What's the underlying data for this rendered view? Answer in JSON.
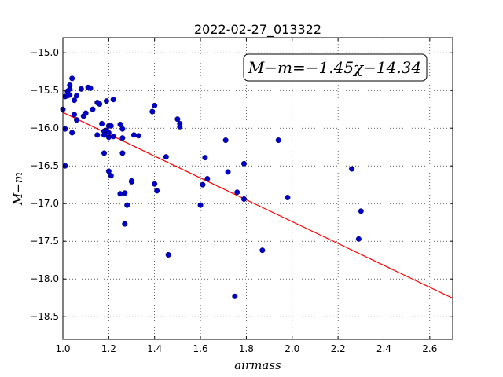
{
  "chart_data": {
    "type": "scatter",
    "title": "2022-02-27_013322",
    "xlabel": "airmass",
    "ylabel": "M−m",
    "xlim": [
      1.0,
      2.7
    ],
    "ylim": [
      -18.8,
      -14.8
    ],
    "ylim_note": "y axis inverted: -15.0 at top, -18.5 at bottom",
    "x_ticks": [
      1.0,
      1.2,
      1.4,
      1.6,
      1.8,
      2.0,
      2.2,
      2.4,
      2.6
    ],
    "y_ticks": [
      -15.0,
      -15.5,
      -16.0,
      -16.5,
      -17.0,
      -17.5,
      -18.0,
      -18.5
    ],
    "x_tick_labels": [
      "1.0",
      "1.2",
      "1.4",
      "1.6",
      "1.8",
      "2.0",
      "2.2",
      "2.4",
      "2.6"
    ],
    "y_tick_labels": [
      "−15.0",
      "−15.5",
      "−16.0",
      "−16.5",
      "−17.0",
      "−17.5",
      "−18.0",
      "−18.5"
    ],
    "grid": true,
    "point_color": "#0000cc",
    "line_color": "#ff0000",
    "annotation": "M−m=−1.45χ−14.34",
    "fit": {
      "slope": -1.45,
      "intercept": -14.34
    },
    "points": [
      [
        1.0,
        -15.75
      ],
      [
        1.01,
        -16.01
      ],
      [
        1.01,
        -16.5
      ],
      [
        1.01,
        -15.58
      ],
      [
        1.02,
        -15.57
      ],
      [
        1.02,
        -15.51
      ],
      [
        1.03,
        -15.48
      ],
      [
        1.03,
        -15.43
      ],
      [
        1.03,
        -15.56
      ],
      [
        1.04,
        -15.34
      ],
      [
        1.04,
        -16.06
      ],
      [
        1.05,
        -15.82
      ],
      [
        1.05,
        -15.63
      ],
      [
        1.06,
        -15.89
      ],
      [
        1.06,
        -15.57
      ],
      [
        1.08,
        -15.48
      ],
      [
        1.09,
        -15.84
      ],
      [
        1.1,
        -15.8
      ],
      [
        1.11,
        -15.46
      ],
      [
        1.12,
        -15.47
      ],
      [
        1.13,
        -15.75
      ],
      [
        1.15,
        -16.09
      ],
      [
        1.15,
        -15.66
      ],
      [
        1.16,
        -15.68
      ],
      [
        1.17,
        -15.94
      ],
      [
        1.18,
        -16.04
      ],
      [
        1.18,
        -16.09
      ],
      [
        1.18,
        -16.33
      ],
      [
        1.19,
        -15.64
      ],
      [
        1.19,
        -16.03
      ],
      [
        1.2,
        -16.12
      ],
      [
        1.2,
        -16.06
      ],
      [
        1.2,
        -15.97
      ],
      [
        1.2,
        -16.57
      ],
      [
        1.21,
        -16.63
      ],
      [
        1.21,
        -15.97
      ],
      [
        1.22,
        -16.11
      ],
      [
        1.22,
        -15.62
      ],
      [
        1.25,
        -16.87
      ],
      [
        1.25,
        -15.95
      ],
      [
        1.26,
        -16.01
      ],
      [
        1.26,
        -16.33
      ],
      [
        1.26,
        -16.13
      ],
      [
        1.27,
        -17.27
      ],
      [
        1.27,
        -16.86
      ],
      [
        1.28,
        -17.02
      ],
      [
        1.3,
        -16.71
      ],
      [
        1.3,
        -16.7
      ],
      [
        1.31,
        -16.09
      ],
      [
        1.33,
        -16.1
      ],
      [
        1.39,
        -15.78
      ],
      [
        1.4,
        -15.7
      ],
      [
        1.4,
        -16.74
      ],
      [
        1.41,
        -16.83
      ],
      [
        1.45,
        -16.38
      ],
      [
        1.46,
        -17.68
      ],
      [
        1.5,
        -15.88
      ],
      [
        1.51,
        -15.94
      ],
      [
        1.51,
        -15.98
      ],
      [
        1.6,
        -17.02
      ],
      [
        1.61,
        -16.75
      ],
      [
        1.62,
        -16.39
      ],
      [
        1.63,
        -16.67
      ],
      [
        1.71,
        -16.16
      ],
      [
        1.72,
        -16.58
      ],
      [
        1.75,
        -18.23
      ],
      [
        1.76,
        -16.85
      ],
      [
        1.79,
        -16.94
      ],
      [
        1.79,
        -16.47
      ],
      [
        1.87,
        -17.62
      ],
      [
        1.94,
        -16.16
      ],
      [
        1.98,
        -16.92
      ],
      [
        2.26,
        -16.54
      ],
      [
        2.29,
        -17.47
      ],
      [
        2.3,
        -17.1
      ]
    ]
  }
}
